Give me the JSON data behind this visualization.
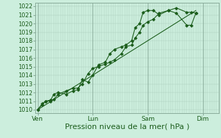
{
  "bg_color": "#cceedd",
  "grid_color_minor": "#aaccbb",
  "grid_color_major": "#88aa99",
  "line_color": "#1a5c1a",
  "marker_color": "#1a5c1a",
  "xlabel": "Pression niveau de la mer( hPa )",
  "xlabel_fontsize": 8,
  "ylabel_ticks": [
    1010,
    1011,
    1012,
    1013,
    1014,
    1015,
    1016,
    1017,
    1018,
    1019,
    1020,
    1021,
    1022
  ],
  "ylim": [
    1009.6,
    1022.4
  ],
  "xtick_labels": [
    "Ven",
    "Lun",
    "Sam",
    "Dim"
  ],
  "xtick_positions": [
    0,
    48,
    96,
    144
  ],
  "xlim": [
    -2,
    158
  ],
  "vline_x": [
    0,
    48,
    96,
    144
  ],
  "tick_fontsize": 6,
  "marker_size": 2.5,
  "series1_x": [
    0,
    4,
    7,
    11,
    14,
    18,
    25,
    31,
    35,
    39,
    44,
    48,
    53,
    59,
    63,
    67,
    73,
    77,
    82,
    85,
    89,
    92,
    96,
    101,
    106,
    114,
    121,
    130,
    134,
    138
  ],
  "series1_y": [
    1010.0,
    1010.7,
    1011.0,
    1011.1,
    1011.2,
    1011.8,
    1012.2,
    1012.5,
    1012.5,
    1013.0,
    1014.2,
    1014.8,
    1015.0,
    1015.3,
    1015.5,
    1015.8,
    1016.5,
    1017.3,
    1017.5,
    1018.3,
    1019.0,
    1019.8,
    1020.2,
    1020.5,
    1021.2,
    1021.5,
    1021.2,
    1019.8,
    1019.8,
    1021.2
  ],
  "series2_x": [
    0,
    4,
    7,
    11,
    14,
    18,
    25,
    31,
    35,
    39,
    44,
    48,
    53,
    59,
    63,
    67,
    73,
    77,
    82,
    85,
    89,
    92,
    96,
    101,
    106,
    114,
    121,
    130,
    134,
    138
  ],
  "series2_y": [
    1010.0,
    1010.6,
    1011.0,
    1011.0,
    1011.8,
    1012.0,
    1011.8,
    1012.2,
    1012.3,
    1013.5,
    1013.2,
    1014.0,
    1015.2,
    1015.5,
    1016.5,
    1017.0,
    1017.3,
    1017.5,
    1018.0,
    1019.5,
    1020.0,
    1021.3,
    1021.5,
    1021.5,
    1021.0,
    1021.5,
    1021.8,
    1021.3,
    1021.3,
    1021.2
  ],
  "trend_x": [
    0,
    138
  ],
  "trend_y": [
    1010.0,
    1021.5
  ]
}
